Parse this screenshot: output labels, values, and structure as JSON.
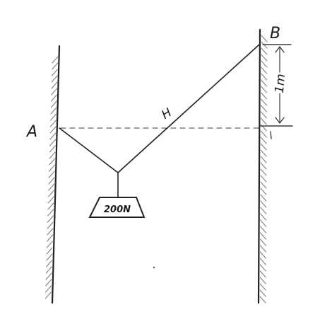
{
  "labels": {
    "point_a": "A",
    "point_b": "B",
    "cable_label": "H",
    "vertical_offset": "1m",
    "load": "200N"
  },
  "colors": {
    "ink": "#222222",
    "hatch": "#7a7a7a",
    "background": "#ffffff"
  }
}
